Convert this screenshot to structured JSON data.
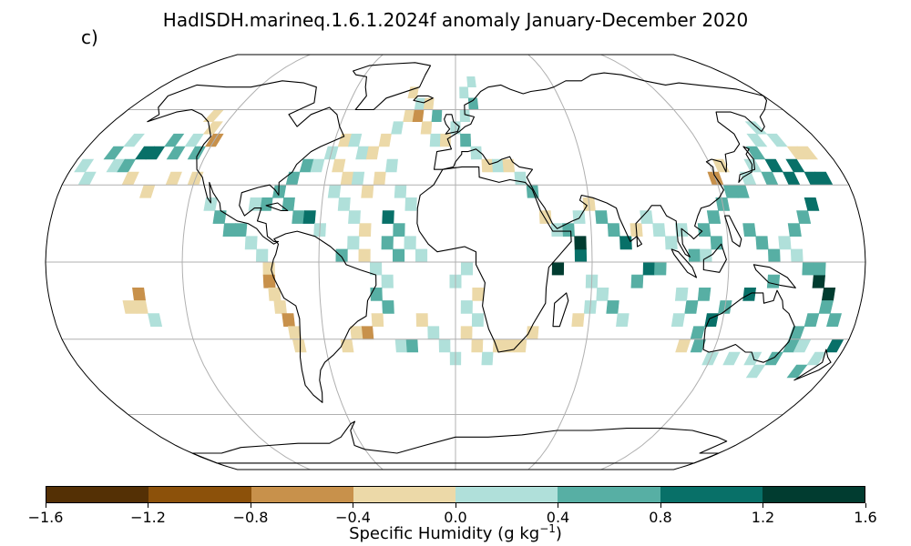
{
  "title": "HadISDH.marineq.1.6.1.2024f anomaly January-December 2020",
  "panel_label": "c)",
  "map": {
    "projection": "Robinson",
    "graticule": true,
    "land_outline_color": "#000000",
    "graticule_color": "#b0b0b0"
  },
  "colorbar": {
    "label_main": "Specific Humidity (g kg",
    "label_sup": "−1",
    "label_close": ")",
    "ticks": [
      "−1.6",
      "−1.2",
      "−0.8",
      "−0.4",
      "0.0",
      "0.4",
      "0.8",
      "1.2",
      "1.6"
    ],
    "colors": [
      "#543005",
      "#8c510a",
      "#c8914b",
      "#ecd9a8",
      "#b0e0da",
      "#57afa4",
      "#087068",
      "#013c30"
    ]
  },
  "anomaly_cells": [
    {
      "lon": -160,
      "lat": 37.5,
      "level": 4
    },
    {
      "lon": -155,
      "lat": 37.5,
      "level": 5
    },
    {
      "lon": -150,
      "lat": 42.5,
      "level": 6
    },
    {
      "lon": -145,
      "lat": 42.5,
      "level": 6
    },
    {
      "lon": -140,
      "lat": 47.5,
      "level": 5
    },
    {
      "lon": -135,
      "lat": 42.5,
      "level": 5
    },
    {
      "lon": -130,
      "lat": 47.5,
      "level": 4
    },
    {
      "lon": -125,
      "lat": 42.5,
      "level": 5
    },
    {
      "lon": -170,
      "lat": 32.5,
      "level": 4
    },
    {
      "lon": -175,
      "lat": 37.5,
      "level": 4
    },
    {
      "lon": -165,
      "lat": 42.5,
      "level": 5
    },
    {
      "lon": -160,
      "lat": 47.5,
      "level": 4
    },
    {
      "lon": -150,
      "lat": 32.5,
      "level": 3
    },
    {
      "lon": -140,
      "lat": 27.5,
      "level": 3
    },
    {
      "lon": -130,
      "lat": 32.5,
      "level": 3
    },
    {
      "lon": -120,
      "lat": 32.5,
      "level": 3
    },
    {
      "lon": -125,
      "lat": 52.5,
      "level": 3
    },
    {
      "lon": -130,
      "lat": 57.5,
      "level": 3
    },
    {
      "lon": -120,
      "lat": 47.5,
      "level": 2
    },
    {
      "lon": -110,
      "lat": 22.5,
      "level": 4
    },
    {
      "lon": -105,
      "lat": 17.5,
      "level": 5
    },
    {
      "lon": -100,
      "lat": 12.5,
      "level": 5
    },
    {
      "lon": -95,
      "lat": 12.5,
      "level": 5
    },
    {
      "lon": -90,
      "lat": 7.5,
      "level": 4
    },
    {
      "lon": -85,
      "lat": 2.5,
      "level": 4
    },
    {
      "lon": -82,
      "lat": -2.5,
      "level": 3
    },
    {
      "lon": -82,
      "lat": -7.5,
      "level": 2
    },
    {
      "lon": -80,
      "lat": -12.5,
      "level": 3
    },
    {
      "lon": -78,
      "lat": -17.5,
      "level": 3
    },
    {
      "lon": -75,
      "lat": -22.5,
      "level": 2
    },
    {
      "lon": -73,
      "lat": -27.5,
      "level": 3
    },
    {
      "lon": -72,
      "lat": -32.5,
      "level": 3
    },
    {
      "lon": -140,
      "lat": -12.5,
      "level": 2
    },
    {
      "lon": -145,
      "lat": -17.5,
      "level": 3
    },
    {
      "lon": -140,
      "lat": -17.5,
      "level": 3
    },
    {
      "lon": -135,
      "lat": -22.5,
      "level": 4
    },
    {
      "lon": -80,
      "lat": 27.5,
      "level": 5
    },
    {
      "lon": -75,
      "lat": 22.5,
      "level": 5
    },
    {
      "lon": -70,
      "lat": 17.5,
      "level": 5
    },
    {
      "lon": -65,
      "lat": 17.5,
      "level": 6
    },
    {
      "lon": -60,
      "lat": 12.5,
      "level": 4
    },
    {
      "lon": -85,
      "lat": 22.5,
      "level": 5
    },
    {
      "lon": -90,
      "lat": 22.5,
      "level": 4
    },
    {
      "lon": -75,
      "lat": 32.5,
      "level": 5
    },
    {
      "lon": -70,
      "lat": 37.5,
      "level": 5
    },
    {
      "lon": -65,
      "lat": 37.5,
      "level": 4
    },
    {
      "lon": -60,
      "lat": 42.5,
      "level": 4
    },
    {
      "lon": -55,
      "lat": 47.5,
      "level": 3
    },
    {
      "lon": -50,
      "lat": 47.5,
      "level": 4
    },
    {
      "lon": -45,
      "lat": 42.5,
      "level": 4
    },
    {
      "lon": -40,
      "lat": 42.5,
      "level": 3
    },
    {
      "lon": -35,
      "lat": 47.5,
      "level": 3
    },
    {
      "lon": -30,
      "lat": 52.5,
      "level": 4
    },
    {
      "lon": -25,
      "lat": 57.5,
      "level": 3
    },
    {
      "lon": -20,
      "lat": 57.5,
      "level": 2
    },
    {
      "lon": -15,
      "lat": 52.5,
      "level": 3
    },
    {
      "lon": -10,
      "lat": 47.5,
      "level": 4
    },
    {
      "lon": -20,
      "lat": 62.5,
      "level": 4
    },
    {
      "lon": -15,
      "lat": 62.5,
      "level": 3
    },
    {
      "lon": -10,
      "lat": 57.5,
      "level": 5
    },
    {
      "lon": -25,
      "lat": 67.5,
      "level": 3
    },
    {
      "lon": 5,
      "lat": 67.5,
      "level": 4
    },
    {
      "lon": 10,
      "lat": 62.5,
      "level": 5
    },
    {
      "lon": 10,
      "lat": 72.5,
      "level": 4
    },
    {
      "lon": -55,
      "lat": 37.5,
      "level": 3
    },
    {
      "lon": -50,
      "lat": 32.5,
      "level": 3
    },
    {
      "lon": -45,
      "lat": 32.5,
      "level": 4
    },
    {
      "lon": -40,
      "lat": 27.5,
      "level": 3
    },
    {
      "lon": -35,
      "lat": 32.5,
      "level": 3
    },
    {
      "lon": -30,
      "lat": 37.5,
      "level": 4
    },
    {
      "lon": -25,
      "lat": 27.5,
      "level": 4
    },
    {
      "lon": -20,
      "lat": 22.5,
      "level": 4
    },
    {
      "lon": -55,
      "lat": 27.5,
      "level": 4
    },
    {
      "lon": -50,
      "lat": 22.5,
      "level": 4
    },
    {
      "lon": -45,
      "lat": 17.5,
      "level": 4
    },
    {
      "lon": -40,
      "lat": 12.5,
      "level": 3
    },
    {
      "lon": -30,
      "lat": 17.5,
      "level": 6
    },
    {
      "lon": -25,
      "lat": 12.5,
      "level": 5
    },
    {
      "lon": -30,
      "lat": 7.5,
      "level": 5
    },
    {
      "lon": -25,
      "lat": 2.5,
      "level": 5
    },
    {
      "lon": -20,
      "lat": 7.5,
      "level": 4
    },
    {
      "lon": -15,
      "lat": 2.5,
      "level": 4
    },
    {
      "lon": -35,
      "lat": -2.5,
      "level": 4
    },
    {
      "lon": -30,
      "lat": -7.5,
      "level": 4
    },
    {
      "lon": -40,
      "lat": 2.5,
      "level": 3
    },
    {
      "lon": -45,
      "lat": 7.5,
      "level": 4
    },
    {
      "lon": -50,
      "lat": 2.5,
      "level": 5
    },
    {
      "lon": -35,
      "lat": -12.5,
      "level": 5
    },
    {
      "lon": -30,
      "lat": -17.5,
      "level": 5
    },
    {
      "lon": -35,
      "lat": -22.5,
      "level": 3
    },
    {
      "lon": -40,
      "lat": -27.5,
      "level": 2
    },
    {
      "lon": -45,
      "lat": -27.5,
      "level": 3
    },
    {
      "lon": -50,
      "lat": -32.5,
      "level": 3
    },
    {
      "lon": -25,
      "lat": -32.5,
      "level": 4
    },
    {
      "lon": -20,
      "lat": -32.5,
      "level": 5
    },
    {
      "lon": -15,
      "lat": -22.5,
      "level": 3
    },
    {
      "lon": -10,
      "lat": -27.5,
      "level": 4
    },
    {
      "lon": -5,
      "lat": -32.5,
      "level": 4
    },
    {
      "lon": 0,
      "lat": -37.5,
      "level": 4
    },
    {
      "lon": 5,
      "lat": -27.5,
      "level": 3
    },
    {
      "lon": 10,
      "lat": -22.5,
      "level": 4
    },
    {
      "lon": 10,
      "lat": -32.5,
      "level": 3
    },
    {
      "lon": 5,
      "lat": -17.5,
      "level": 4
    },
    {
      "lon": 0,
      "lat": -7.5,
      "level": 4
    },
    {
      "lon": 5,
      "lat": -2.5,
      "level": 4
    },
    {
      "lon": 10,
      "lat": -12.5,
      "level": 3
    },
    {
      "lon": 15,
      "lat": -37.5,
      "level": 4
    },
    {
      "lon": 20,
      "lat": -32.5,
      "level": 3
    },
    {
      "lon": 25,
      "lat": -32.5,
      "level": 3
    },
    {
      "lon": 30,
      "lat": -32.5,
      "level": 3
    },
    {
      "lon": 35,
      "lat": -27.5,
      "level": 3
    },
    {
      "lon": 5,
      "lat": 57.5,
      "level": 4
    },
    {
      "lon": 0,
      "lat": 52.5,
      "level": 4
    },
    {
      "lon": -5,
      "lat": 47.5,
      "level": 3
    },
    {
      "lon": 5,
      "lat": 47.5,
      "level": 5
    },
    {
      "lon": 10,
      "lat": 42.5,
      "level": 4
    },
    {
      "lon": 15,
      "lat": 37.5,
      "level": 3
    },
    {
      "lon": 20,
      "lat": 37.5,
      "level": 4
    },
    {
      "lon": 25,
      "lat": 37.5,
      "level": 3
    },
    {
      "lon": 30,
      "lat": 32.5,
      "level": 4
    },
    {
      "lon": 35,
      "lat": 27.5,
      "level": 5
    },
    {
      "lon": 40,
      "lat": 17.5,
      "level": 3
    },
    {
      "lon": 45,
      "lat": 12.5,
      "level": 4
    },
    {
      "lon": 50,
      "lat": 12.5,
      "level": 5
    },
    {
      "lon": 55,
      "lat": 17.5,
      "level": 4
    },
    {
      "lon": 60,
      "lat": 22.5,
      "level": 3
    },
    {
      "lon": 65,
      "lat": 17.5,
      "level": 5
    },
    {
      "lon": 70,
      "lat": 12.5,
      "level": 5
    },
    {
      "lon": 75,
      "lat": 7.5,
      "level": 6
    },
    {
      "lon": 80,
      "lat": 12.5,
      "level": 3
    },
    {
      "lon": 85,
      "lat": 17.5,
      "level": 4
    },
    {
      "lon": 90,
      "lat": 12.5,
      "level": 4
    },
    {
      "lon": 95,
      "lat": 7.5,
      "level": 4
    },
    {
      "lon": 55,
      "lat": 2.5,
      "level": 6
    },
    {
      "lon": 55,
      "lat": 7.5,
      "level": 7
    },
    {
      "lon": 45,
      "lat": -2.5,
      "level": 7
    },
    {
      "lon": 60,
      "lat": -7.5,
      "level": 4
    },
    {
      "lon": 65,
      "lat": -12.5,
      "level": 4
    },
    {
      "lon": 70,
      "lat": -17.5,
      "level": 5
    },
    {
      "lon": 75,
      "lat": -22.5,
      "level": 4
    },
    {
      "lon": 80,
      "lat": -7.5,
      "level": 5
    },
    {
      "lon": 85,
      "lat": -2.5,
      "level": 6
    },
    {
      "lon": 90,
      "lat": -2.5,
      "level": 5
    },
    {
      "lon": 60,
      "lat": -17.5,
      "level": 4
    },
    {
      "lon": 55,
      "lat": -22.5,
      "level": 3
    },
    {
      "lon": 100,
      "lat": 12.5,
      "level": 4
    },
    {
      "lon": 110,
      "lat": 12.5,
      "level": 5
    },
    {
      "lon": 115,
      "lat": 17.5,
      "level": 5
    },
    {
      "lon": 120,
      "lat": 22.5,
      "level": 5
    },
    {
      "lon": 125,
      "lat": 27.5,
      "level": 5
    },
    {
      "lon": 130,
      "lat": 27.5,
      "level": 5
    },
    {
      "lon": 135,
      "lat": 32.5,
      "level": 4
    },
    {
      "lon": 140,
      "lat": 37.5,
      "level": 4
    },
    {
      "lon": 145,
      "lat": 42.5,
      "level": 5
    },
    {
      "lon": 150,
      "lat": 47.5,
      "level": 4
    },
    {
      "lon": 155,
      "lat": 52.5,
      "level": 4
    },
    {
      "lon": 160,
      "lat": 47.5,
      "level": 4
    },
    {
      "lon": 165,
      "lat": 42.5,
      "level": 3
    },
    {
      "lon": 170,
      "lat": 42.5,
      "level": 3
    },
    {
      "lon": 160,
      "lat": 37.5,
      "level": 6
    },
    {
      "lon": 165,
      "lat": 32.5,
      "level": 6
    },
    {
      "lon": 170,
      "lat": 32.5,
      "level": 6
    },
    {
      "lon": 155,
      "lat": 32.5,
      "level": 6
    },
    {
      "lon": 150,
      "lat": 37.5,
      "level": 6
    },
    {
      "lon": 145,
      "lat": 32.5,
      "level": 5
    },
    {
      "lon": 125,
      "lat": 37.5,
      "level": 3
    },
    {
      "lon": 120,
      "lat": 32.5,
      "level": 2
    },
    {
      "lon": 130,
      "lat": 12.5,
      "level": 5
    },
    {
      "lon": 135,
      "lat": 7.5,
      "level": 5
    },
    {
      "lon": 140,
      "lat": 2.5,
      "level": 5
    },
    {
      "lon": 145,
      "lat": 7.5,
      "level": 4
    },
    {
      "lon": 150,
      "lat": 12.5,
      "level": 5
    },
    {
      "lon": 155,
      "lat": 17.5,
      "level": 5
    },
    {
      "lon": 160,
      "lat": 22.5,
      "level": 6
    },
    {
      "lon": 150,
      "lat": 2.5,
      "level": 4
    },
    {
      "lon": 155,
      "lat": -2.5,
      "level": 5
    },
    {
      "lon": 160,
      "lat": -7.5,
      "level": 7
    },
    {
      "lon": 165,
      "lat": -12.5,
      "level": 7
    },
    {
      "lon": 160,
      "lat": -2.5,
      "level": 5
    },
    {
      "lon": 140,
      "lat": -7.5,
      "level": 5
    },
    {
      "lon": 130,
      "lat": -12.5,
      "level": 6
    },
    {
      "lon": 120,
      "lat": -17.5,
      "level": 5
    },
    {
      "lon": 115,
      "lat": -22.5,
      "level": 6
    },
    {
      "lon": 110,
      "lat": -27.5,
      "level": 5
    },
    {
      "lon": 112,
      "lat": -32.5,
      "level": 5
    },
    {
      "lon": 110,
      "lat": -12.5,
      "level": 5
    },
    {
      "lon": 105,
      "lat": -17.5,
      "level": 5
    },
    {
      "lon": 100,
      "lat": -22.5,
      "level": 4
    },
    {
      "lon": 105,
      "lat": -32.5,
      "level": 3
    },
    {
      "lon": 100,
      "lat": -12.5,
      "level": 4
    },
    {
      "lon": 120,
      "lat": -37.5,
      "level": 4
    },
    {
      "lon": 130,
      "lat": -37.5,
      "level": 4
    },
    {
      "lon": 140,
      "lat": -37.5,
      "level": 4
    },
    {
      "lon": 150,
      "lat": -37.5,
      "level": 5
    },
    {
      "lon": 155,
      "lat": -32.5,
      "level": 5
    },
    {
      "lon": 155,
      "lat": -27.5,
      "level": 5
    },
    {
      "lon": 160,
      "lat": -22.5,
      "level": 5
    },
    {
      "lon": 165,
      "lat": -17.5,
      "level": 5
    },
    {
      "lon": 170,
      "lat": -22.5,
      "level": 5
    },
    {
      "lon": 170,
      "lat": -37.5,
      "level": 4
    },
    {
      "lon": 165,
      "lat": -42.5,
      "level": 5
    },
    {
      "lon": 175,
      "lat": -32.5,
      "level": 6
    },
    {
      "lon": 160,
      "lat": -32.5,
      "level": 4
    },
    {
      "lon": 145,
      "lat": -42.5,
      "level": 4
    },
    {
      "lon": 105,
      "lat": 2.5,
      "level": 5
    },
    {
      "lon": 110,
      "lat": 2.5,
      "level": 4
    },
    {
      "lon": 115,
      "lat": 7.5,
      "level": 5
    }
  ]
}
